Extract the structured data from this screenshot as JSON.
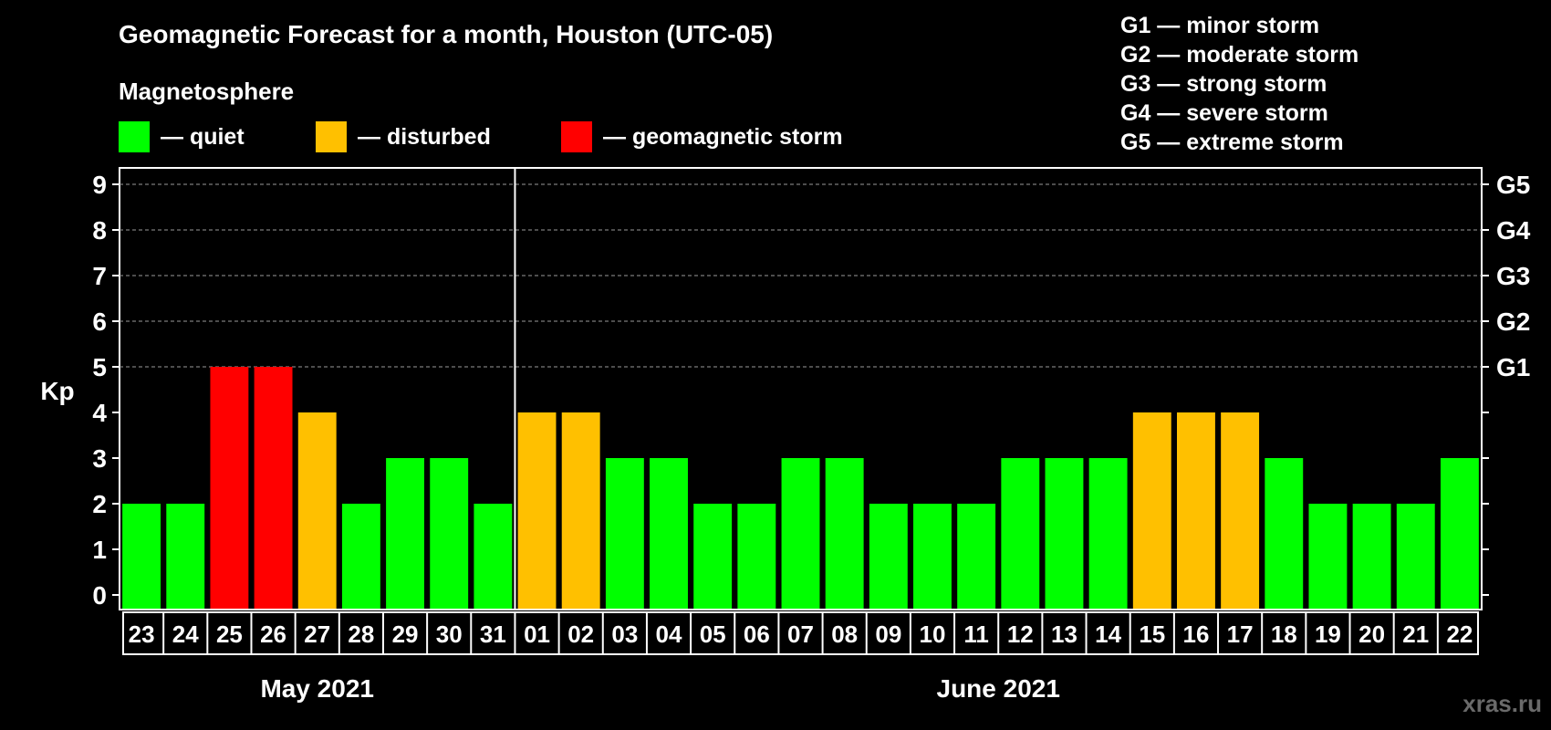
{
  "title": "Geomagnetic Forecast for a month, Houston (UTC-05)",
  "legend": {
    "title": "Magnetosphere",
    "items": [
      {
        "label": "— quiet",
        "color": "#00ff00"
      },
      {
        "label": "— disturbed",
        "color": "#ffc000"
      },
      {
        "label": "— geomagnetic storm",
        "color": "#ff0000"
      }
    ]
  },
  "storm_legend": [
    "G1 — minor storm",
    "G2 — moderate storm",
    "G3 — strong storm",
    "G4 — severe storm",
    "G5 — extreme storm"
  ],
  "watermark": "xras.ru",
  "chart_data": {
    "type": "bar",
    "ylabel": "Kp",
    "ylim": [
      0,
      9
    ],
    "yticks": [
      0,
      1,
      2,
      3,
      4,
      5,
      6,
      7,
      8,
      9
    ],
    "right_ticks": [
      {
        "value": 5,
        "label": "G1"
      },
      {
        "value": 6,
        "label": "G2"
      },
      {
        "value": 7,
        "label": "G3"
      },
      {
        "value": 8,
        "label": "G4"
      },
      {
        "value": 9,
        "label": "G5"
      }
    ],
    "grid": "dashed horizontal at Kp 5-9",
    "months": [
      {
        "label": "May 2021",
        "days": [
          "23",
          "24",
          "25",
          "26",
          "27",
          "28",
          "29",
          "30",
          "31"
        ]
      },
      {
        "label": "June 2021",
        "days": [
          "01",
          "02",
          "03",
          "04",
          "05",
          "06",
          "07",
          "08",
          "09",
          "10",
          "11",
          "12",
          "13",
          "14",
          "15",
          "16",
          "17",
          "18",
          "19",
          "20",
          "21",
          "22"
        ]
      }
    ],
    "values": [
      2,
      2,
      5,
      5,
      4,
      2,
      3,
      3,
      2,
      4,
      4,
      3,
      3,
      2,
      2,
      3,
      3,
      2,
      2,
      2,
      3,
      3,
      3,
      4,
      4,
      4,
      3,
      2,
      2,
      2,
      3
    ],
    "colors": {
      "quiet": "#00ff00",
      "disturbed": "#ffc000",
      "storm": "#ff0000"
    }
  }
}
